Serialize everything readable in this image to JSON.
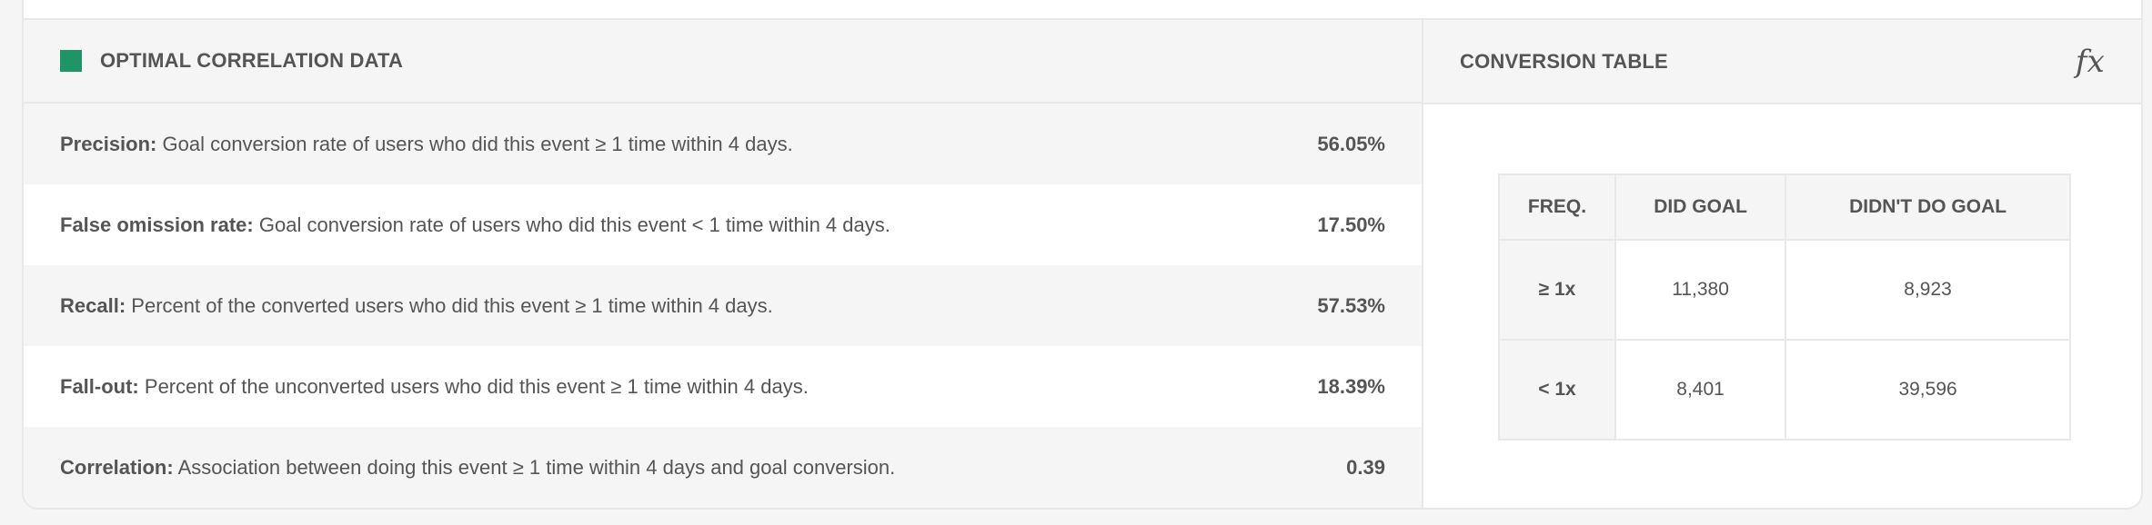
{
  "correlation_panel": {
    "title": "OPTIMAL CORRELATION DATA",
    "accent_color": "#1f9467",
    "rows": [
      {
        "label": "Precision:",
        "description": "Goal conversion rate of users who did this event ≥ 1 time within 4 days.",
        "value": "56.05%"
      },
      {
        "label": "False omission rate:",
        "description": "Goal conversion rate of users who did this event < 1 time within 4 days.",
        "value": "17.50%"
      },
      {
        "label": "Recall:",
        "description": "Percent of the converted users who did this event ≥ 1 time within 4 days.",
        "value": "57.53%"
      },
      {
        "label": "Fall-out:",
        "description": "Percent of the unconverted users who did this event ≥ 1 time within 4 days.",
        "value": "18.39%"
      },
      {
        "label": "Correlation:",
        "description": "Association between doing this event ≥ 1 time within 4 days and goal conversion.",
        "value": "0.39"
      }
    ]
  },
  "conversion_table": {
    "title": "CONVERSION TABLE",
    "icon": "fx-formula-icon",
    "icon_text": "fx",
    "headers": [
      "FREQ.",
      "DID GOAL",
      "DIDN'T DO GOAL"
    ],
    "rows": [
      {
        "freq": "≥ 1x",
        "did": "11,380",
        "didnt": "8,923"
      },
      {
        "freq": "< 1x",
        "did": "8,401",
        "didnt": "39,596"
      }
    ]
  }
}
